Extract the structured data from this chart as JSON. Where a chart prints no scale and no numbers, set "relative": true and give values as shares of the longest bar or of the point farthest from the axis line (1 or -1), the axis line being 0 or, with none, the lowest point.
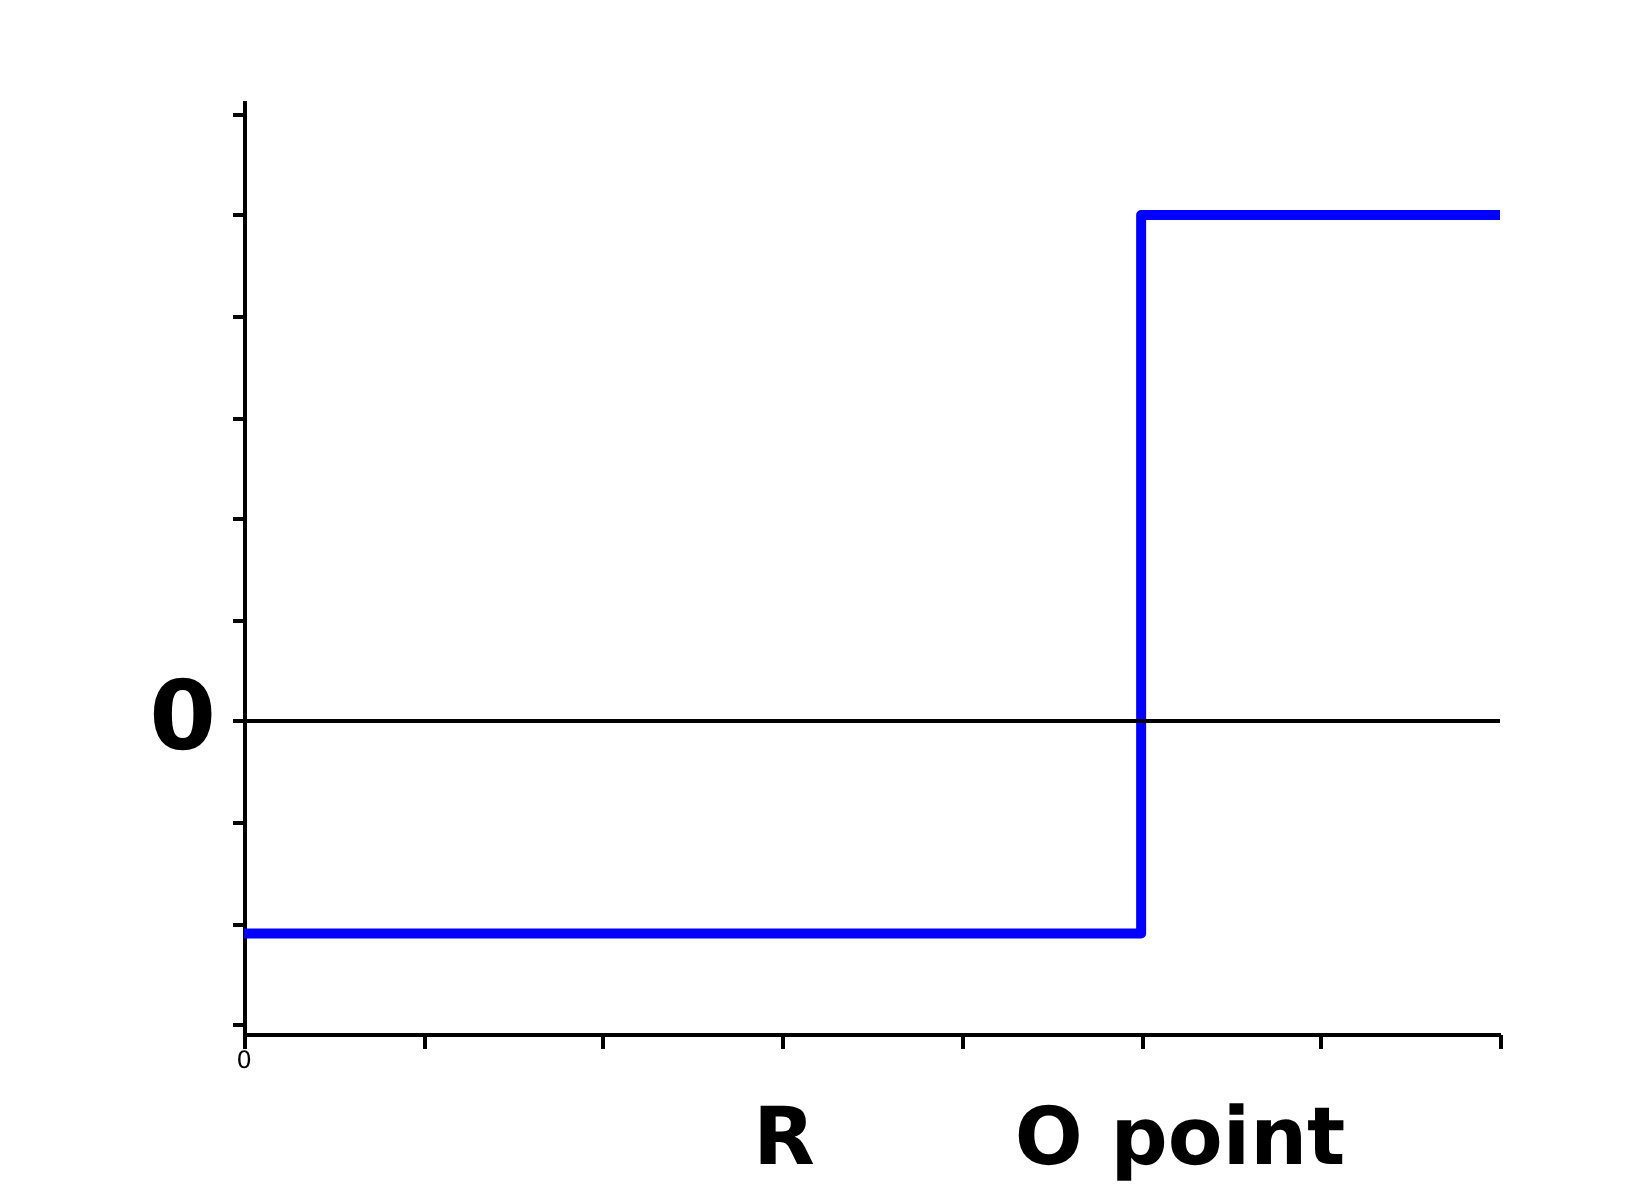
{
  "chart_data": {
    "type": "step",
    "relative": true,
    "categories": [
      null,
      null,
      null,
      null,
      null,
      null,
      null,
      null
    ],
    "series": [
      {
        "color": "#0000ff",
        "values": [
          -0.42,
          -0.42,
          -0.42,
          -0.42,
          -0.42,
          1,
          1,
          1
        ]
      }
    ],
    "ref_lines": [
      {
        "axis": "y",
        "value": 0,
        "label": "0",
        "color": "#000000"
      }
    ],
    "annotations": [
      "0",
      "R",
      "O point"
    ],
    "grid": false
  }
}
